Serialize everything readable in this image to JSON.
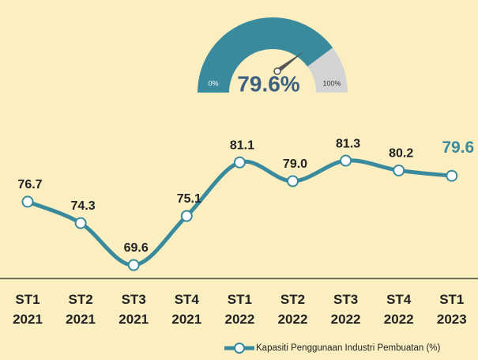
{
  "chart_data": [
    {
      "type": "gauge",
      "value": 79.6,
      "value_label": "79.6%",
      "ylim": [
        0,
        100
      ],
      "yticks": [
        {
          "value": 0,
          "label": "0%"
        },
        {
          "value": 100,
          "label": "100%"
        }
      ],
      "color": "#3a8a9e",
      "track_color": "#d4d4d4",
      "needle_color": "#555555"
    },
    {
      "type": "line",
      "categories": [
        [
          "ST1",
          "2021"
        ],
        [
          "ST2",
          "2021"
        ],
        [
          "ST3",
          "2021"
        ],
        [
          "ST4",
          "2021"
        ],
        [
          "ST1",
          "2022"
        ],
        [
          "ST2",
          "2022"
        ],
        [
          "ST3",
          "2022"
        ],
        [
          "ST4",
          "2022"
        ],
        [
          "ST1",
          "2023"
        ]
      ],
      "series": [
        {
          "name": "Kapasiti Penggunaan Industri Pembuatan (%)",
          "color": "#3a8a9e",
          "values": [
            76.7,
            74.3,
            69.6,
            75.1,
            81.1,
            79.0,
            81.3,
            80.2,
            79.6
          ],
          "value_labels": [
            "76.7",
            "74.3",
            "69.6",
            "75.1",
            "81.1",
            "79.0",
            "81.3",
            "80.2",
            "79.6"
          ]
        }
      ],
      "ylim": [
        65,
        85
      ],
      "highlight_color": "#3a8a9e"
    }
  ]
}
